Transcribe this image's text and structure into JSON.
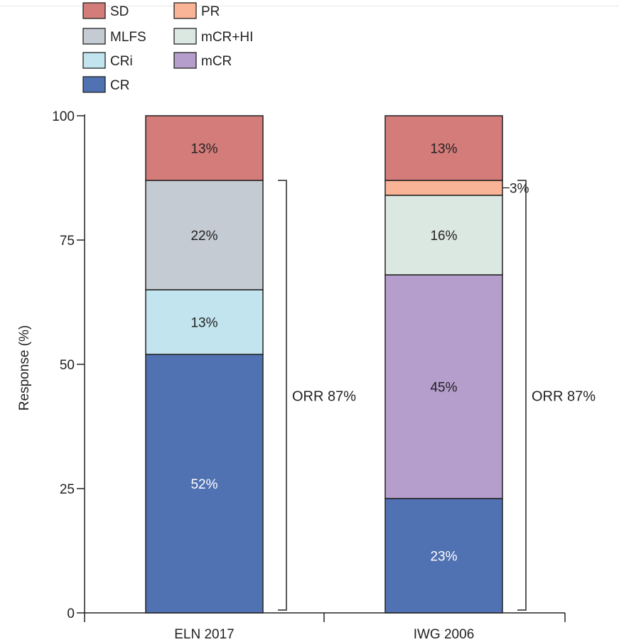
{
  "chart_data": {
    "type": "bar",
    "stacked": true,
    "title": "",
    "ylabel": "Response (%)",
    "xlabel": "",
    "ylim": [
      0,
      100
    ],
    "yticks": [
      0,
      25,
      50,
      75,
      100
    ],
    "grid": false,
    "legend_position": "top-left",
    "legend": [
      {
        "key": "SD",
        "label": "SD",
        "color": "#d47c79"
      },
      {
        "key": "PR",
        "label": "PR",
        "color": "#f9b396"
      },
      {
        "key": "MLFS",
        "label": "MLFS",
        "color": "#c5cbd2"
      },
      {
        "key": "mCRHI",
        "label": "mCR+HI",
        "color": "#dbe7e1"
      },
      {
        "key": "CRi",
        "label": "CRi",
        "color": "#c1e4ee"
      },
      {
        "key": "mCR",
        "label": "mCR",
        "color": "#b59dcc"
      },
      {
        "key": "CR",
        "label": "CR",
        "color": "#5071b2"
      }
    ],
    "categories": [
      "ELN 2017",
      "IWG 2006"
    ],
    "stacks": [
      {
        "category": "ELN 2017",
        "segments": [
          {
            "key": "CR",
            "value": 52,
            "label": "52%",
            "label_color": "#ffffff"
          },
          {
            "key": "CRi",
            "value": 13,
            "label": "13%",
            "label_color": "#222222"
          },
          {
            "key": "MLFS",
            "value": 22,
            "label": "22%",
            "label_color": "#222222"
          },
          {
            "key": "SD",
            "value": 13,
            "label": "13%",
            "label_color": "#222222"
          }
        ],
        "bracket": {
          "from": 0,
          "to": 87,
          "label": "ORR 87%"
        }
      },
      {
        "category": "IWG 2006",
        "segments": [
          {
            "key": "CR",
            "value": 23,
            "label": "23%",
            "label_color": "#ffffff"
          },
          {
            "key": "mCR",
            "value": 45,
            "label": "45%",
            "label_color": "#222222"
          },
          {
            "key": "mCRHI",
            "value": 16,
            "label": "16%",
            "label_color": "#222222"
          },
          {
            "key": "PR",
            "value": 3,
            "label": "3%",
            "label_color": "#222222",
            "label_outside": true
          },
          {
            "key": "SD",
            "value": 13,
            "label": "13%",
            "label_color": "#222222"
          }
        ],
        "bracket": {
          "from": 0,
          "to": 87,
          "label": "ORR 87%"
        }
      }
    ]
  }
}
